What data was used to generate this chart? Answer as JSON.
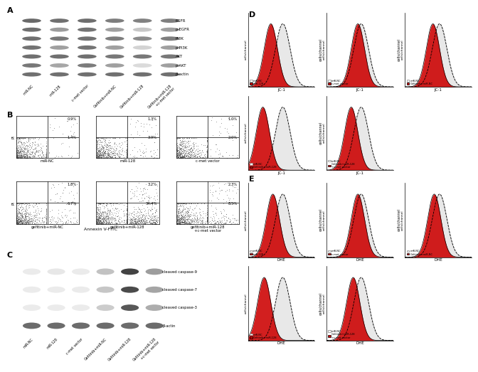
{
  "panel_A": {
    "label": "A",
    "bands": [
      "EGFR",
      "p-EGFR",
      "PI3K",
      "p-PI3K",
      "AKT",
      "p-AKT",
      "β-actin"
    ],
    "lanes": [
      "miR-NC",
      "miR-128",
      "c-met vector",
      "Gefitinib+miR-NC",
      "Gefitinib+miR-128",
      "Gefitinib+miR-128\n+c-met vector"
    ],
    "intensities": {
      "EGFR": [
        0.75,
        0.72,
        0.73,
        0.65,
        0.63,
        0.64
      ],
      "p-EGFR": [
        0.72,
        0.5,
        0.7,
        0.48,
        0.28,
        0.48
      ],
      "PI3K": [
        0.72,
        0.68,
        0.71,
        0.65,
        0.58,
        0.65
      ],
      "p-PI3K": [
        0.7,
        0.48,
        0.7,
        0.48,
        0.22,
        0.48
      ],
      "AKT": [
        0.72,
        0.72,
        0.72,
        0.68,
        0.68,
        0.68
      ],
      "p-AKT": [
        0.68,
        0.44,
        0.66,
        0.48,
        0.18,
        0.48
      ],
      "β-actin": [
        0.72,
        0.72,
        0.72,
        0.72,
        0.72,
        0.72
      ]
    }
  },
  "panel_B": {
    "label": "B",
    "plots": [
      {
        "title": "miR-NC",
        "top_right": "0.9%",
        "bottom_right": "1.4%"
      },
      {
        "title": "miR-128",
        "top_right": "1.3%",
        "bottom_right": "3.9%"
      },
      {
        "title": "c-met vector",
        "top_right": "1.0%",
        "bottom_right": "2.0%"
      },
      {
        "title": "gefitinib+miR-NC",
        "top_right": "1.8%",
        "bottom_right": "6.7%"
      },
      {
        "title": "gefitinib+miR-128",
        "top_right": "3.2%",
        "bottom_right": "34.4%"
      },
      {
        "title": "gefitinib+miR-128\n+c-met vector",
        "top_right": "2.3%",
        "bottom_right": "8.5%"
      }
    ],
    "xlabel": "Annexin V-FITC",
    "ylabel": "PI"
  },
  "panel_C": {
    "label": "C",
    "bands": [
      "cleaved caspase-9",
      "cleaved caspase-7",
      "cleaved caspase-3",
      "β-actin"
    ],
    "lanes": [
      "miR-NC",
      "miR-128",
      "c-met vector",
      "Gefitinib+miR-NC",
      "Gefitinib+miR-128",
      "Gefitinib+miR-128\n+c-met vector"
    ],
    "intensities": {
      "cleaved caspase-9": [
        0.1,
        0.12,
        0.1,
        0.3,
        0.92,
        0.48
      ],
      "cleaved caspase-7": [
        0.1,
        0.1,
        0.1,
        0.28,
        0.88,
        0.44
      ],
      "cleaved caspase-3": [
        0.1,
        0.1,
        0.1,
        0.25,
        0.82,
        0.4
      ],
      "β-actin": [
        0.72,
        0.72,
        0.72,
        0.72,
        0.72,
        0.72
      ]
    }
  },
  "panel_D": {
    "label": "D",
    "row0": [
      {
        "l1": "miR-NC",
        "l2": "miR-128",
        "xlabel": "JC-1",
        "red_shift": -0.18,
        "gray_shift": 0.0
      },
      {
        "l1": "miR-NC",
        "l2": "c-met vector",
        "xlabel": "JC-1",
        "red_shift": -0.05,
        "gray_shift": 0.0
      },
      {
        "l1": "miR-NC",
        "l2": "Gefitinib+miR-NC",
        "xlabel": "JC-1",
        "red_shift": -0.1,
        "gray_shift": 0.0
      }
    ],
    "row1": [
      {
        "l1": "miR-NC",
        "l2": "Gefitinib+miR-128",
        "xlabel": "JC-1",
        "red_shift": -0.3,
        "gray_shift": 0.0
      },
      {
        "l1": "miR-NC",
        "l2": "Gefitinib+miR-128\n+c-met vector",
        "xlabel": "JC-1",
        "red_shift": -0.15,
        "gray_shift": 0.0
      }
    ]
  },
  "panel_E": {
    "label": "E",
    "row0": [
      {
        "l1": "miR-NC",
        "l2": "miR-128",
        "xlabel": "DHE",
        "red_shift": -0.15,
        "gray_shift": 0.0
      },
      {
        "l1": "miR-NC",
        "l2": "c-met vector",
        "xlabel": "DHE",
        "red_shift": -0.05,
        "gray_shift": 0.0
      },
      {
        "l1": "miR-NC",
        "l2": "Gefitinib+miR-NC",
        "xlabel": "DHE",
        "red_shift": -0.08,
        "gray_shift": 0.0
      }
    ],
    "row1": [
      {
        "l1": "miR-NC",
        "l2": "Gefitinib+miR-128",
        "xlabel": "DHE",
        "red_shift": -0.28,
        "gray_shift": 0.0
      },
      {
        "l1": "miR-NC",
        "l2": "Gefitinib+miR-128\n+c-met vector",
        "xlabel": "DHE",
        "red_shift": -0.12,
        "gray_shift": 0.0
      }
    ]
  },
  "bg_color": "#ffffff",
  "hist_red": "#cc0000",
  "scatter_color": "#555555"
}
